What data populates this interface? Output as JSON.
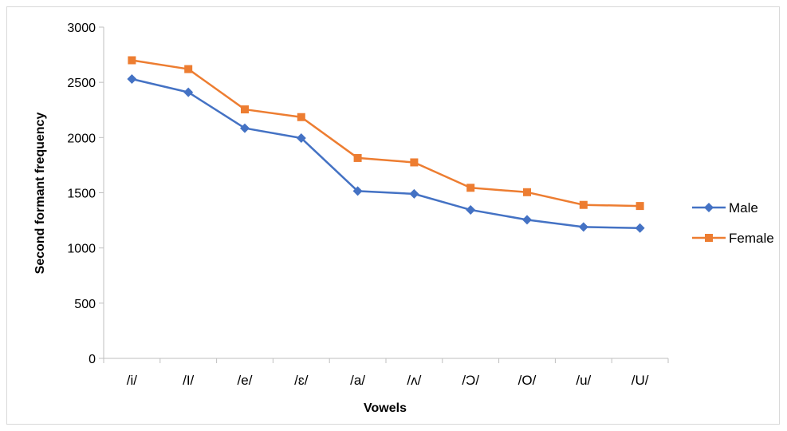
{
  "chart_data": {
    "type": "line",
    "title": "",
    "xlabel": "Vowels",
    "ylabel": "Second formant frequency",
    "categories": [
      "/i/",
      "/I/",
      "/e/",
      "/ɛ/",
      "/a/",
      "/ʌ/",
      "/Ɔ/",
      "/O/",
      "/u/",
      "/U/"
    ],
    "ylim": [
      0,
      3000
    ],
    "yticks": [
      0,
      500,
      1000,
      1500,
      2000,
      2500,
      3000
    ],
    "grid": false,
    "legend_position": "right",
    "series": [
      {
        "name": "Male",
        "color": "#4472C4",
        "marker": "diamond",
        "values": [
          2530,
          2410,
          2085,
          1995,
          1515,
          1490,
          1345,
          1255,
          1190,
          1180
        ]
      },
      {
        "name": "Female",
        "color": "#ED7D31",
        "marker": "square",
        "values": [
          2700,
          2620,
          2255,
          2185,
          1815,
          1775,
          1545,
          1505,
          1390,
          1380
        ]
      }
    ]
  }
}
